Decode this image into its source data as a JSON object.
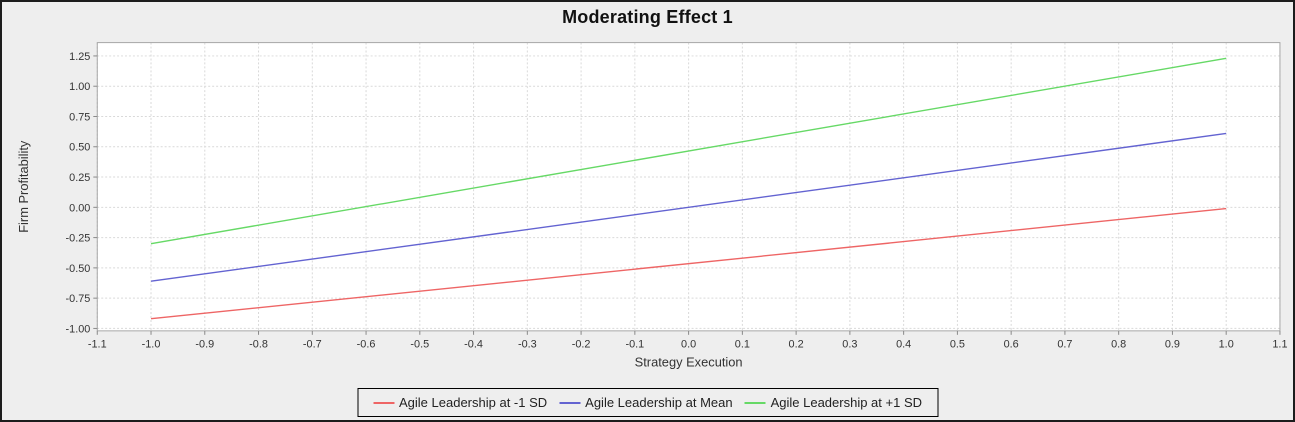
{
  "chart_data": {
    "type": "line",
    "title": "Moderating Effect 1",
    "xlabel": "Strategy Execution",
    "ylabel": "Firm Profitability",
    "xlim": [
      -1.1,
      1.1
    ],
    "ylim": [
      -1.02,
      1.36
    ],
    "x_tick_labels": [
      "-1.1",
      "-1.0",
      "-0.9",
      "-0.8",
      "-0.7",
      "-0.6",
      "-0.5",
      "-0.4",
      "-0.3",
      "-0.2",
      "-0.1",
      "0.0",
      "0.1",
      "0.2",
      "0.3",
      "0.4",
      "0.5",
      "0.6",
      "0.7",
      "0.8",
      "0.9",
      "1.0",
      "1.1"
    ],
    "y_tick_labels": [
      "-1.00",
      "-0.75",
      "-0.50",
      "-0.25",
      "0.00",
      "0.25",
      "0.50",
      "0.75",
      "1.00",
      "1.25"
    ],
    "grid": true,
    "legend_position": "bottom",
    "series": [
      {
        "name": "Agile Leadership at -1 SD",
        "color": "#ee6565",
        "x": [
          -1.0,
          1.0
        ],
        "y": [
          -0.92,
          -0.01
        ]
      },
      {
        "name": "Agile Leadership at Mean",
        "color": "#6363d1",
        "x": [
          -1.0,
          1.0
        ],
        "y": [
          -0.61,
          0.61
        ]
      },
      {
        "name": "Agile Leadership at +1 SD",
        "color": "#66d966",
        "x": [
          -1.0,
          1.0
        ],
        "y": [
          -0.3,
          1.23
        ]
      }
    ]
  },
  "colors": {
    "page_background": "#eeeeee",
    "plot_background": "#ffffff",
    "gridline": "#d9d9d9",
    "plot_border": "#a6a6a6",
    "tick": "#888888",
    "text": "#333333",
    "outer_border": "#1c1c1c"
  }
}
